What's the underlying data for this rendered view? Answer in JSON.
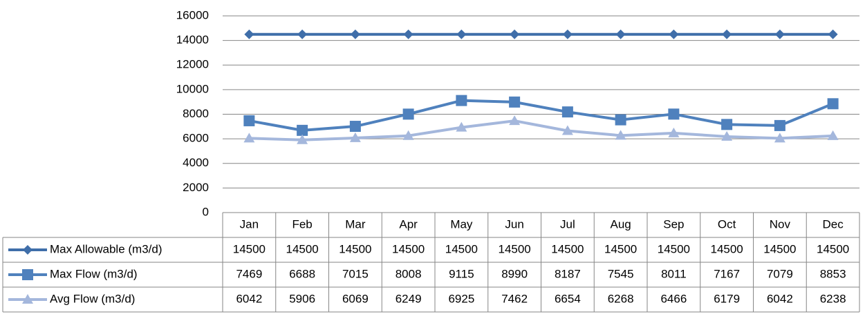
{
  "chart_data": {
    "type": "line",
    "categories": [
      "Jan",
      "Feb",
      "Mar",
      "Apr",
      "May",
      "Jun",
      "Jul",
      "Aug",
      "Sep",
      "Oct",
      "Nov",
      "Dec"
    ],
    "series": [
      {
        "name": "Max Allowable (m3/d)",
        "color": "#3f6ea9",
        "marker": "diamond",
        "values": [
          14500,
          14500,
          14500,
          14500,
          14500,
          14500,
          14500,
          14500,
          14500,
          14500,
          14500,
          14500
        ]
      },
      {
        "name": "Max Flow (m3/d)",
        "color": "#4f81bd",
        "marker": "square",
        "values": [
          7469,
          6688,
          7015,
          8008,
          9115,
          8990,
          8187,
          7545,
          8011,
          7167,
          7079,
          8853
        ]
      },
      {
        "name": "Avg Flow (m3/d)",
        "color": "#a4b7dc",
        "marker": "triangle",
        "values": [
          6042,
          5906,
          6069,
          6249,
          6925,
          7462,
          6654,
          6268,
          6466,
          6179,
          6042,
          6238
        ]
      }
    ],
    "ylim": [
      0,
      16000
    ],
    "yticks": [
      0,
      2000,
      4000,
      6000,
      8000,
      10000,
      12000,
      14000,
      16000
    ],
    "grid": true,
    "data_table": true
  }
}
